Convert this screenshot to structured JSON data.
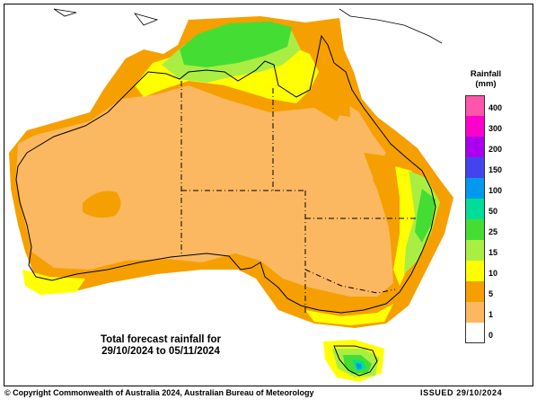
{
  "legend": {
    "title_line1": "Rainfall",
    "title_line2": "(mm)",
    "bins": [
      {
        "label": "400",
        "color": "#ff55aa"
      },
      {
        "label": "300",
        "color": "#ff00cc"
      },
      {
        "label": "200",
        "color": "#aa00ee"
      },
      {
        "label": "150",
        "color": "#4444ee"
      },
      {
        "label": "100",
        "color": "#0099ee"
      },
      {
        "label": "50",
        "color": "#00dd99"
      },
      {
        "label": "25",
        "color": "#44dd33"
      },
      {
        "label": "15",
        "color": "#aaee44"
      },
      {
        "label": "10",
        "color": "#ffff00"
      },
      {
        "label": "5",
        "color": "#f5a000"
      },
      {
        "label": "1",
        "color": "#fbb860"
      },
      {
        "label": "0",
        "color": "#ffffff"
      }
    ]
  },
  "caption": {
    "line1": "Total forecast rainfall for",
    "line2": "29/10/2024 to 05/11/2024"
  },
  "footer": {
    "copyright": "© Copyright Commonwealth of Australia 2024, Australian Bureau of Meteorology",
    "issued": "ISSUED 29/10/2024"
  },
  "colors": {
    "land_light": "#fbb860",
    "orange": "#f5a000",
    "yellow": "#ffff00",
    "light_green": "#aaee44",
    "green": "#44dd33",
    "teal": "#00dd99",
    "blue": "#0099ee"
  }
}
